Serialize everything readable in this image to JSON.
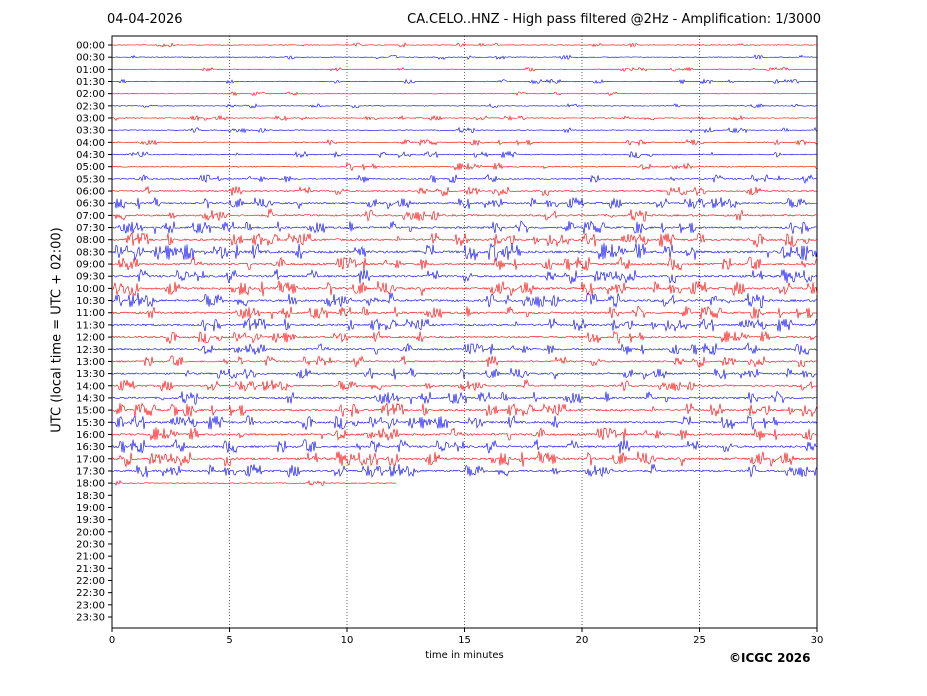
{
  "header": {
    "date": "04-04-2026",
    "station_title": "CA.CELO..HNZ - High pass filtered @2Hz - Amplification: 1/3000"
  },
  "footer": {
    "copyright": "©ICGC 2026"
  },
  "chart_data": {
    "type": "line",
    "xlabel": "time in minutes",
    "ylabel": "UTC (local time = UTC + 02:00)",
    "xlim": [
      0,
      30
    ],
    "x_ticks": [
      "0",
      "5",
      "10",
      "15",
      "20",
      "25",
      "30"
    ],
    "x_gridlines": [
      5,
      10,
      15,
      20,
      25
    ],
    "grid": "vertical dotted at 5-minute intervals",
    "row_labels": [
      "00:00",
      "00:30",
      "01:00",
      "01:30",
      "02:00",
      "02:30",
      "03:00",
      "03:30",
      "04:00",
      "04:30",
      "05:00",
      "05:30",
      "06:00",
      "06:30",
      "07:00",
      "07:30",
      "08:00",
      "08:30",
      "09:00",
      "09:30",
      "10:00",
      "10:30",
      "11:00",
      "11:30",
      "12:00",
      "12:30",
      "13:00",
      "13:30",
      "14:00",
      "14:30",
      "15:00",
      "15:30",
      "16:00",
      "16:30",
      "17:00",
      "17:30",
      "18:00",
      "18:30",
      "19:00",
      "19:30",
      "20:00",
      "20:30",
      "21:00",
      "21:30",
      "22:00",
      "22:30",
      "23:00",
      "23:30"
    ],
    "trace_colors": [
      "#ff0000",
      "#0000ff"
    ],
    "trace_end": {
      "row": "18:00",
      "minutes": 12.1
    },
    "series": [
      {
        "row": "00:00",
        "activity": 0.05
      },
      {
        "row": "00:30",
        "activity": 0.08
      },
      {
        "row": "01:00",
        "activity": 0.05
      },
      {
        "row": "01:30",
        "activity": 0.07
      },
      {
        "row": "02:00",
        "activity": 0.04
      },
      {
        "row": "02:30",
        "activity": 0.06
      },
      {
        "row": "03:00",
        "activity": 0.1
      },
      {
        "row": "03:30",
        "activity": 0.12
      },
      {
        "row": "04:00",
        "activity": 0.15
      },
      {
        "row": "04:30",
        "activity": 0.18
      },
      {
        "row": "05:00",
        "activity": 0.25
      },
      {
        "row": "05:30",
        "activity": 0.3
      },
      {
        "row": "06:00",
        "activity": 0.35
      },
      {
        "row": "06:30",
        "activity": 0.45
      },
      {
        "row": "07:00",
        "activity": 0.5
      },
      {
        "row": "07:30",
        "activity": 0.55
      },
      {
        "row": "08:00",
        "activity": 0.6
      },
      {
        "row": "08:30",
        "activity": 0.8
      },
      {
        "row": "09:00",
        "activity": 0.6
      },
      {
        "row": "09:30",
        "activity": 0.6
      },
      {
        "row": "10:00",
        "activity": 0.65
      },
      {
        "row": "10:30",
        "activity": 0.65
      },
      {
        "row": "11:00",
        "activity": 0.55
      },
      {
        "row": "11:30",
        "activity": 0.55
      },
      {
        "row": "12:00",
        "activity": 0.5
      },
      {
        "row": "12:30",
        "activity": 0.5
      },
      {
        "row": "13:00",
        "activity": 0.45
      },
      {
        "row": "13:30",
        "activity": 0.45
      },
      {
        "row": "14:00",
        "activity": 0.45
      },
      {
        "row": "14:30",
        "activity": 0.55
      },
      {
        "row": "15:00",
        "activity": 0.6
      },
      {
        "row": "15:30",
        "activity": 0.6
      },
      {
        "row": "16:00",
        "activity": 0.6
      },
      {
        "row": "16:30",
        "activity": 0.6
      },
      {
        "row": "17:00",
        "activity": 0.65
      },
      {
        "row": "17:30",
        "activity": 0.55
      },
      {
        "row": "18:00",
        "activity": 0.1
      }
    ]
  }
}
